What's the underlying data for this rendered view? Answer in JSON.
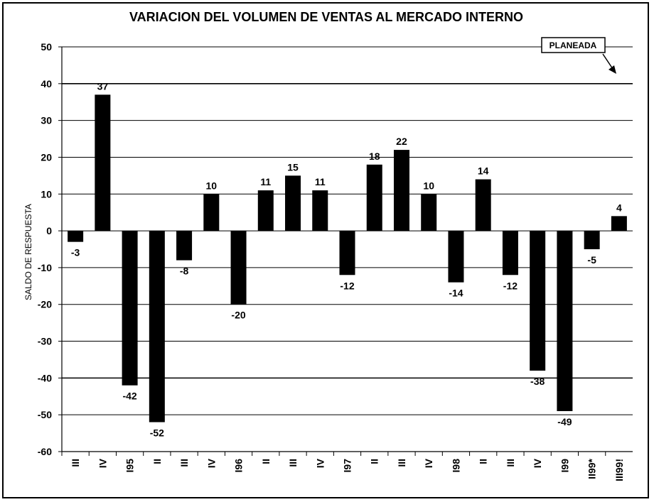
{
  "chart_data": {
    "type": "bar",
    "title": "VARIACION DEL VOLUMEN DE VENTAS AL MERCADO INTERNO",
    "xlabel": "",
    "ylabel": "SALDO DE RESPUESTA",
    "ylim": [
      -60,
      50
    ],
    "yticks": [
      50,
      40,
      30,
      20,
      10,
      0,
      -10,
      -20,
      -30,
      -40,
      -50,
      -60
    ],
    "grid": true,
    "categories": [
      "III",
      "IV",
      "I95",
      "II",
      "III",
      "IV",
      "I96",
      "II",
      "III",
      "IV",
      "I97",
      "II",
      "III",
      "IV",
      "I98",
      "II",
      "III",
      "IV",
      "I99",
      "II99*",
      "III99!"
    ],
    "values": [
      -3,
      37,
      -42,
      -52,
      -8,
      10,
      -20,
      11,
      15,
      11,
      -12,
      18,
      22,
      10,
      -14,
      14,
      -12,
      -38,
      -49,
      -5,
      4
    ],
    "data_labels": [
      "-3",
      "37",
      "-42",
      "-52",
      "-8",
      "10",
      "-20",
      "11",
      "15",
      "11",
      "-12",
      "18",
      "22",
      "10",
      "-14",
      "14",
      "-12",
      "-38",
      "-49",
      "-5",
      "4"
    ],
    "annotation": "PLANEADA",
    "bar_color": "#000000"
  }
}
